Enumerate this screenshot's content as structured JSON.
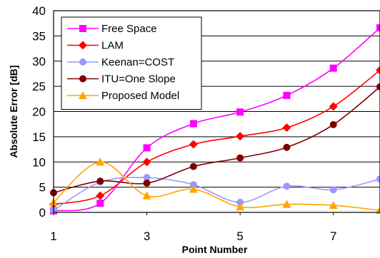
{
  "chart_data": {
    "type": "line",
    "title": "",
    "xlabel": "Point Number",
    "ylabel": "Absolute Error [dB]",
    "xlim": [
      1,
      8
    ],
    "ylim": [
      0,
      40
    ],
    "x_ticks": [
      "1",
      "3",
      "5",
      "7"
    ],
    "y_ticks": [
      "0",
      "5",
      "10",
      "15",
      "20",
      "25",
      "30",
      "35",
      "40"
    ],
    "grid": "horizontal",
    "legend_position": "top-left",
    "x": [
      1,
      2,
      3,
      4,
      5,
      6,
      7,
      8
    ],
    "series": [
      {
        "name": "Free Space",
        "color": "#ff00ff",
        "marker": "square",
        "values": [
          0.3,
          1.8,
          12.8,
          17.6,
          19.9,
          23.2,
          28.6,
          36.6
        ]
      },
      {
        "name": "LAM",
        "color": "#ff0000",
        "marker": "diamond",
        "values": [
          1.6,
          3.3,
          10.0,
          13.5,
          15.1,
          16.8,
          21.0,
          28.2
        ]
      },
      {
        "name": "Keenan=COST",
        "color": "#9999ff",
        "marker": "circle",
        "values": [
          0.4,
          6.0,
          6.9,
          5.5,
          2.0,
          5.2,
          4.5,
          6.6
        ]
      },
      {
        "name": "ITU=One Slope",
        "color": "#800000",
        "marker": "circle",
        "values": [
          3.9,
          6.2,
          5.8,
          9.1,
          10.8,
          12.9,
          17.4,
          24.9
        ]
      },
      {
        "name": "Proposed Model",
        "color": "#ffa500",
        "marker": "triangle",
        "values": [
          2.0,
          10.0,
          3.3,
          4.6,
          1.1,
          1.6,
          1.4,
          0.4
        ]
      }
    ]
  }
}
